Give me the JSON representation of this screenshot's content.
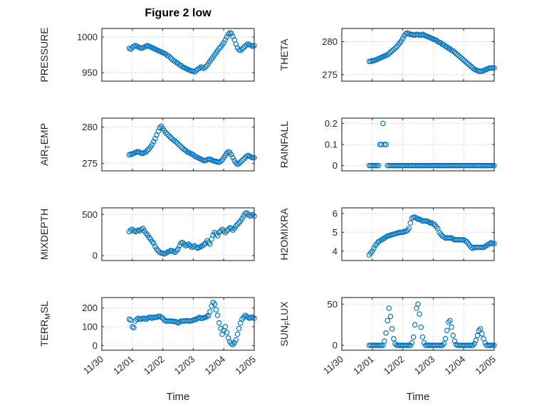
{
  "figure": {
    "title": "Figure 2 low",
    "xlabel": "Time",
    "background": "#ffffff"
  },
  "colors": {
    "marker": "#0072BD",
    "axis": "#262626",
    "grid": "#b5b5b5",
    "text": "#262626"
  },
  "chart_data": {
    "type": "scatter",
    "marker": {
      "shape": "open-circle",
      "size": 3.2,
      "color": "#0072BD"
    },
    "grid": true,
    "legend": "none",
    "xlim": [
      0,
      5
    ],
    "xticks": [
      {
        "v": 0,
        "label": "11/30"
      },
      {
        "v": 1,
        "label": "12/01"
      },
      {
        "v": 2,
        "label": "12/02"
      },
      {
        "v": 3,
        "label": "12/03"
      },
      {
        "v": 4,
        "label": "12/04"
      },
      {
        "v": 5,
        "label": "12/05"
      }
    ],
    "x_units": "days after 11/30",
    "x": [
      0.9,
      0.95,
      1,
      1.05,
      1.1,
      1.15,
      1.2,
      1.25,
      1.3,
      1.35,
      1.4,
      1.45,
      1.5,
      1.55,
      1.6,
      1.65,
      1.7,
      1.75,
      1.8,
      1.85,
      1.9,
      1.95,
      2,
      2.05,
      2.1,
      2.15,
      2.2,
      2.25,
      2.3,
      2.35,
      2.4,
      2.45,
      2.5,
      2.55,
      2.6,
      2.65,
      2.7,
      2.75,
      2.8,
      2.85,
      2.9,
      2.95,
      3,
      3.05,
      3.1,
      3.15,
      3.2,
      3.25,
      3.3,
      3.35,
      3.4,
      3.45,
      3.5,
      3.55,
      3.6,
      3.65,
      3.7,
      3.75,
      3.8,
      3.85,
      3.9,
      3.95,
      4,
      4.05,
      4.1,
      4.15,
      4.2,
      4.25,
      4.3,
      4.35,
      4.4,
      4.45,
      4.5,
      4.55,
      4.6,
      4.65,
      4.7,
      4.75,
      4.8,
      4.85,
      4.9,
      4.95,
      5
    ],
    "subplots": [
      {
        "id": "pressure",
        "row": 0,
        "col": 0,
        "ylabel": [
          {
            "text": "PRESSURE"
          }
        ],
        "ylim": [
          938,
          1012
        ],
        "yticks": [
          {
            "v": 950,
            "label": "950"
          },
          {
            "v": 1000,
            "label": "1000"
          }
        ],
        "show_xticklabels": false,
        "y": [
          984,
          983,
          985,
          987,
          988,
          987,
          986,
          985,
          984,
          985,
          986,
          987,
          988,
          987,
          986,
          985,
          984,
          983,
          982,
          981,
          980,
          979,
          978,
          977,
          976,
          974,
          973,
          971,
          969,
          967,
          966,
          964,
          963,
          961,
          960,
          958,
          957,
          956,
          955,
          954,
          953,
          952,
          952,
          951,
          953,
          955,
          956,
          958,
          957,
          956,
          958,
          960,
          963,
          966,
          969,
          972,
          975,
          978,
          981,
          984,
          986,
          989,
          992,
          996,
          1000,
          1004,
          1006,
          1005,
          1001,
          996,
          990,
          985,
          982,
          981,
          983,
          985,
          987,
          989,
          990,
          989,
          988,
          987,
          988
        ]
      },
      {
        "id": "theta",
        "row": 0,
        "col": 1,
        "ylabel": [
          {
            "text": "THETA"
          }
        ],
        "ylim": [
          274,
          282
        ],
        "yticks": [
          {
            "v": 275,
            "label": "275"
          },
          {
            "v": 280,
            "label": "280"
          }
        ],
        "show_xticklabels": false,
        "y": [
          277,
          277,
          277.1,
          277.1,
          277.2,
          277.3,
          277.4,
          277.5,
          277.6,
          277.7,
          277.8,
          277.9,
          278,
          278.2,
          278.4,
          278.6,
          278.8,
          279,
          279.2,
          279.5,
          279.8,
          280.1,
          280.5,
          280.9,
          281.2,
          281.3,
          281.2,
          281.1,
          281.1,
          281,
          281,
          281.1,
          281.1,
          281,
          281,
          281.1,
          281,
          280.9,
          280.8,
          280.7,
          280.6,
          280.5,
          280.4,
          280.3,
          280.2,
          280,
          279.9,
          279.8,
          279.6,
          279.5,
          279.3,
          279.2,
          279,
          278.9,
          278.7,
          278.6,
          278.4,
          278.2,
          278,
          277.8,
          277.6,
          277.4,
          277.2,
          277,
          276.8,
          276.6,
          276.4,
          276.2,
          276,
          275.8,
          275.7,
          275.6,
          275.5,
          275.5,
          275.5,
          275.6,
          275.7,
          275.8,
          275.9,
          276,
          276,
          276,
          276
        ]
      },
      {
        "id": "airtemp",
        "row": 1,
        "col": 0,
        "ylabel": [
          {
            "text": "AIR"
          },
          {
            "text": "T",
            "sub": true
          },
          {
            "text": "EMP"
          }
        ],
        "ylim": [
          274,
          281.2
        ],
        "yticks": [
          {
            "v": 275,
            "label": "275"
          },
          {
            "v": 280,
            "label": "280"
          }
        ],
        "show_xticklabels": false,
        "y": [
          276.2,
          276.3,
          276.3,
          276.4,
          276.5,
          276.6,
          276.6,
          276.5,
          276.4,
          276.4,
          276.5,
          276.6,
          276.8,
          277,
          277.3,
          277.6,
          278,
          278.4,
          278.9,
          279.4,
          279.9,
          280.1,
          279.8,
          279.5,
          279.2,
          279,
          278.8,
          278.6,
          278.4,
          278.2,
          278.1,
          277.9,
          277.7,
          277.5,
          277.3,
          277.1,
          276.9,
          276.8,
          276.6,
          276.5,
          276.4,
          276.3,
          276.2,
          276,
          275.9,
          275.8,
          275.7,
          275.6,
          275.5,
          275.4,
          275.4,
          275.5,
          275.6,
          275.6,
          275.5,
          275.4,
          275.3,
          275.3,
          275.2,
          275.2,
          275.3,
          275.5,
          275.8,
          276.1,
          276.4,
          276.6,
          276.5,
          276.2,
          275.8,
          275.4,
          275.1,
          274.9,
          275,
          275.2,
          275.4,
          275.6,
          275.8,
          276,
          276.1,
          276,
          275.9,
          275.8,
          275.8
        ]
      },
      {
        "id": "rainfall",
        "row": 1,
        "col": 1,
        "ylabel": [
          {
            "text": "RAINFALL"
          }
        ],
        "ylim": [
          -0.025,
          0.225
        ],
        "yticks": [
          {
            "v": 0,
            "label": "0"
          },
          {
            "v": 0.1,
            "label": "0.1"
          },
          {
            "v": 0.2,
            "label": "0.2"
          }
        ],
        "show_xticklabels": false,
        "y": [
          0,
          0,
          0,
          0,
          0,
          0,
          0,
          0.1,
          0.1,
          0.2,
          0.1,
          0.1,
          0,
          0,
          0,
          0,
          0,
          0,
          0,
          0,
          0,
          0,
          0,
          0,
          0,
          0,
          0,
          0,
          0,
          0,
          0,
          0,
          0,
          0,
          0,
          0,
          0,
          0,
          0,
          0,
          0,
          0,
          0,
          0,
          0,
          0,
          0,
          0,
          0,
          0,
          0,
          0,
          0,
          0,
          0,
          0,
          0,
          0,
          0,
          0,
          0,
          0,
          0,
          0,
          0,
          0,
          0,
          0,
          0,
          0,
          0,
          0,
          0,
          0,
          0,
          0,
          0,
          0,
          0,
          0,
          0,
          0,
          0
        ]
      },
      {
        "id": "mixdepth",
        "row": 2,
        "col": 0,
        "ylabel": [
          {
            "text": "MIXDEPTH"
          }
        ],
        "ylim": [
          -60,
          580
        ],
        "yticks": [
          {
            "v": 0,
            "label": "0"
          },
          {
            "v": 500,
            "label": "500"
          }
        ],
        "show_xticklabels": false,
        "y": [
          290,
          310,
          320,
          300,
          290,
          300,
          310,
          300,
          320,
          330,
          300,
          270,
          250,
          220,
          200,
          170,
          150,
          110,
          80,
          60,
          40,
          30,
          30,
          20,
          30,
          40,
          50,
          60,
          60,
          50,
          40,
          60,
          80,
          120,
          150,
          160,
          140,
          120,
          130,
          140,
          120,
          100,
          110,
          120,
          100,
          90,
          100,
          110,
          120,
          135,
          150,
          180,
          160,
          140,
          200,
          250,
          280,
          260,
          240,
          280,
          300,
          320,
          300,
          280,
          300,
          320,
          340,
          330,
          310,
          330,
          360,
          380,
          400,
          420,
          450,
          480,
          510,
          520,
          500,
          480,
          490,
          500,
          480
        ]
      },
      {
        "id": "h2omixra",
        "row": 2,
        "col": 1,
        "ylabel": [
          {
            "text": "H2OMIXRA"
          }
        ],
        "ylim": [
          3.5,
          6.3
        ],
        "yticks": [
          {
            "v": 4,
            "label": "4"
          },
          {
            "v": 5,
            "label": "5"
          },
          {
            "v": 6,
            "label": "6"
          }
        ],
        "show_xticklabels": false,
        "y": [
          3.8,
          3.9,
          4,
          4.15,
          4.3,
          4.4,
          4.5,
          4.55,
          4.6,
          4.65,
          4.7,
          4.75,
          4.8,
          4.82,
          4.85,
          4.88,
          4.9,
          4.92,
          4.95,
          4.97,
          5,
          5,
          5,
          5.05,
          5.05,
          5.1,
          5.2,
          5.5,
          5.75,
          5.8,
          5.8,
          5.75,
          5.7,
          5.7,
          5.65,
          5.6,
          5.6,
          5.6,
          5.6,
          5.55,
          5.5,
          5.5,
          5.45,
          5.4,
          5.3,
          5.2,
          5,
          4.9,
          4.8,
          4.75,
          4.7,
          4.7,
          4.7,
          4.7,
          4.7,
          4.65,
          4.6,
          4.6,
          4.6,
          4.6,
          4.6,
          4.6,
          4.6,
          4.55,
          4.5,
          4.4,
          4.3,
          4.2,
          4.15,
          4.2,
          4.2,
          4.2,
          4.2,
          4.2,
          4.2,
          4.2,
          4.25,
          4.3,
          4.35,
          4.4,
          4.45,
          4.4,
          4.4
        ]
      },
      {
        "id": "terrmsl",
        "row": 3,
        "col": 0,
        "ylabel": [
          {
            "text": "TERR"
          },
          {
            "text": "M",
            "sub": true
          },
          {
            "text": "SL"
          }
        ],
        "ylim": [
          -25,
          255
        ],
        "yticks": [
          {
            "v": 0,
            "label": "0"
          },
          {
            "v": 100,
            "label": "100"
          },
          {
            "v": 200,
            "label": "200"
          }
        ],
        "show_xticklabels": true,
        "y": [
          140,
          135,
          100,
          95,
          130,
          140,
          145,
          140,
          140,
          145,
          145,
          140,
          145,
          150,
          150,
          145,
          150,
          150,
          150,
          155,
          155,
          150,
          145,
          135,
          130,
          130,
          130,
          130,
          130,
          128,
          128,
          125,
          120,
          125,
          130,
          130,
          130,
          132,
          132,
          130,
          130,
          132,
          135,
          138,
          140,
          145,
          150,
          145,
          145,
          148,
          150,
          155,
          160,
          180,
          210,
          230,
          220,
          190,
          160,
          120,
          90,
          60,
          80,
          100,
          70,
          40,
          20,
          10,
          5,
          15,
          30,
          60,
          90,
          120,
          140,
          150,
          160,
          155,
          150,
          145,
          150,
          150,
          145
        ]
      },
      {
        "id": "sunflux",
        "row": 3,
        "col": 1,
        "ylabel": [
          {
            "text": "SUN"
          },
          {
            "text": "F",
            "sub": true
          },
          {
            "text": "LUX"
          }
        ],
        "ylim": [
          -6,
          58
        ],
        "yticks": [
          {
            "v": 0,
            "label": "0"
          },
          {
            "v": 50,
            "label": "50"
          }
        ],
        "show_xticklabels": true,
        "y": [
          0,
          0,
          0,
          0,
          0,
          0,
          0,
          0,
          0,
          0,
          5,
          15,
          30,
          45,
          35,
          20,
          8,
          2,
          0,
          0,
          0,
          0,
          0,
          0,
          0,
          0,
          0,
          0,
          3,
          10,
          25,
          45,
          50,
          38,
          22,
          10,
          3,
          0,
          0,
          0,
          0,
          0,
          0,
          0,
          0,
          0,
          0,
          0,
          0,
          2,
          8,
          18,
          28,
          30,
          22,
          12,
          5,
          1,
          0,
          0,
          0,
          0,
          0,
          0,
          0,
          0,
          0,
          0,
          0,
          2,
          6,
          12,
          18,
          20,
          14,
          8,
          3,
          0,
          0,
          0,
          0,
          0,
          0
        ]
      }
    ]
  }
}
